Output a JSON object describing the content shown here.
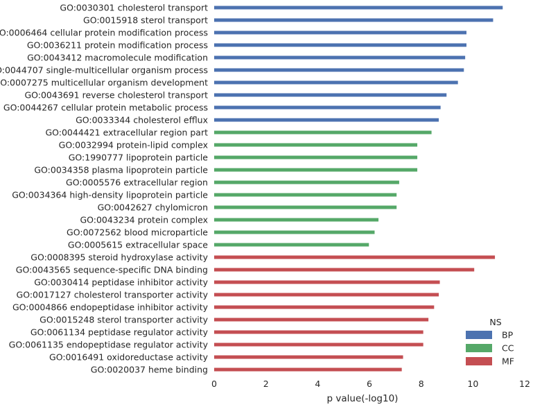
{
  "chart_data": {
    "type": "bar",
    "orientation": "horizontal",
    "xlabel": "p value(-log10)",
    "xlim": [
      0,
      12
    ],
    "xticks": [
      "0",
      "2",
      "4",
      "6",
      "8",
      "10",
      "12"
    ],
    "grid": false,
    "legend": {
      "title": "NS",
      "placement": "bottom-right",
      "entries": [
        {
          "name": "BP",
          "color": "#4c72b0"
        },
        {
          "name": "CC",
          "color": "#55a868"
        },
        {
          "name": "MF",
          "color": "#c44e52"
        }
      ]
    },
    "categories": [
      "GO:0030301 cholesterol transport",
      "GO:0015918 sterol transport",
      "GO:0006464 cellular protein modification process",
      "GO:0036211 protein modification process",
      "GO:0043412 macromolecule modification",
      "GO:0044707 single-multicellular organism process",
      "GO:0007275 multicellular organism development",
      "GO:0043691 reverse cholesterol transport",
      "GO:0044267 cellular protein metabolic process",
      "GO:0033344 cholesterol efflux",
      "GO:0044421 extracellular region part",
      "GO:0032994 protein-lipid complex",
      "GO:1990777 lipoprotein particle",
      "GO:0034358 plasma lipoprotein particle",
      "GO:0005576 extracellular region",
      "GO:0034364 high-density lipoprotein particle",
      "GO:0042627 chylomicron",
      "GO:0043234 protein complex",
      "GO:0072562 blood microparticle",
      "GO:0005615 extracellular space",
      "GO:0008395 steroid hydroxylase activity",
      "GO:0043565 sequence-specific DNA binding",
      "GO:0030414 peptidase inhibitor activity",
      "GO:0017127 cholesterol transporter activity",
      "GO:0004866 endopeptidase inhibitor activity",
      "GO:0015248 sterol transporter activity",
      "GO:0061134 peptidase regulator activity",
      "GO:0061135 endopeptidase regulator activity",
      "GO:0016491 oxidoreductase activity",
      "GO:0020037 heme binding"
    ],
    "groups": [
      "BP",
      "BP",
      "BP",
      "BP",
      "BP",
      "BP",
      "BP",
      "BP",
      "BP",
      "BP",
      "CC",
      "CC",
      "CC",
      "CC",
      "CC",
      "CC",
      "CC",
      "CC",
      "CC",
      "CC",
      "MF",
      "MF",
      "MF",
      "MF",
      "MF",
      "MF",
      "MF",
      "MF",
      "MF",
      "MF"
    ],
    "values": [
      11.15,
      10.78,
      9.75,
      9.75,
      9.7,
      9.65,
      9.42,
      8.98,
      8.75,
      8.68,
      8.4,
      7.85,
      7.85,
      7.85,
      7.15,
      7.05,
      7.05,
      6.35,
      6.2,
      5.98,
      10.85,
      10.05,
      8.72,
      8.68,
      8.5,
      8.28,
      8.08,
      8.08,
      7.3,
      7.25
    ]
  }
}
